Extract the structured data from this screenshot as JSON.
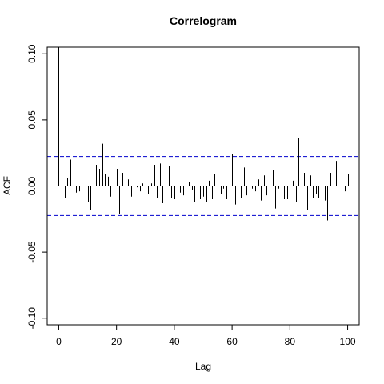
{
  "chart_data": {
    "type": "bar",
    "title": "Correlogram",
    "xlabel": "Lag",
    "ylabel": "ACF",
    "xlim": [
      -4,
      104
    ],
    "ylim": [
      -0.105,
      0.105
    ],
    "x_ticks": [
      {
        "value": 0,
        "label": "0"
      },
      {
        "value": 20,
        "label": "20"
      },
      {
        "value": 40,
        "label": "40"
      },
      {
        "value": 60,
        "label": "60"
      },
      {
        "value": 80,
        "label": "80"
      },
      {
        "value": 100,
        "label": "100"
      }
    ],
    "y_ticks": [
      {
        "value": -0.1,
        "label": "-0.10"
      },
      {
        "value": -0.05,
        "label": "-0.05"
      },
      {
        "value": 0.0,
        "label": "0.00"
      },
      {
        "value": 0.05,
        "label": "0.05"
      },
      {
        "value": 0.1,
        "label": "0.10"
      }
    ],
    "confidence_band": {
      "upper": 0.0223,
      "lower": -0.0223,
      "color": "#0000cd"
    },
    "spike_color": "#000000",
    "lags": [
      0,
      1,
      2,
      3,
      4,
      5,
      6,
      7,
      8,
      9,
      10,
      11,
      12,
      13,
      14,
      15,
      16,
      17,
      18,
      19,
      20,
      21,
      22,
      23,
      24,
      25,
      26,
      27,
      28,
      29,
      30,
      31,
      32,
      33,
      34,
      35,
      36,
      37,
      38,
      39,
      40,
      41,
      42,
      43,
      44,
      45,
      46,
      47,
      48,
      49,
      50,
      51,
      52,
      53,
      54,
      55,
      56,
      57,
      58,
      59,
      60,
      61,
      62,
      63,
      64,
      65,
      66,
      67,
      68,
      69,
      70,
      71,
      72,
      73,
      74,
      75,
      76,
      77,
      78,
      79,
      80,
      81,
      82,
      83,
      84,
      85,
      86,
      87,
      88,
      89,
      90,
      91,
      92,
      93,
      94,
      95,
      96,
      97,
      98,
      99,
      100
    ],
    "acf": [
      1.0,
      0.009,
      -0.009,
      0.006,
      0.02,
      -0.004,
      -0.005,
      -0.004,
      0.01,
      0.0,
      -0.012,
      -0.018,
      -0.004,
      0.016,
      0.013,
      0.032,
      0.009,
      0.007,
      -0.008,
      -0.002,
      0.013,
      -0.021,
      0.01,
      -0.008,
      0.005,
      -0.008,
      0.003,
      -0.001,
      -0.004,
      0.002,
      0.033,
      -0.006,
      0.002,
      0.016,
      -0.009,
      0.017,
      -0.013,
      0.003,
      0.015,
      -0.009,
      -0.01,
      0.007,
      -0.005,
      -0.007,
      0.004,
      0.003,
      -0.003,
      -0.012,
      -0.004,
      -0.01,
      -0.008,
      -0.012,
      0.004,
      -0.01,
      0.009,
      0.003,
      -0.006,
      -0.002,
      -0.01,
      -0.013,
      0.024,
      -0.014,
      -0.034,
      -0.009,
      0.014,
      -0.007,
      0.026,
      -0.002,
      -0.004,
      0.005,
      -0.011,
      0.008,
      -0.007,
      0.009,
      0.012,
      -0.017,
      -0.002,
      0.006,
      -0.01,
      -0.01,
      -0.013,
      0.004,
      -0.012,
      0.036,
      -0.007,
      0.01,
      -0.018,
      0.008,
      -0.009,
      -0.006,
      -0.009,
      0.015,
      -0.011,
      -0.026,
      0.01,
      -0.021,
      0.019,
      0.0,
      0.003,
      -0.004,
      0.009
    ]
  }
}
